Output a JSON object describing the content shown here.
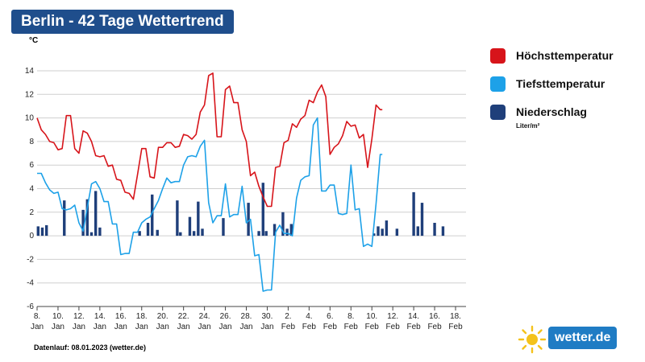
{
  "header": {
    "title": "Berlin - 42 Tage Wettertrend"
  },
  "footer": {
    "text": "Datenlauf: 08.01.2023 (wetter.de)"
  },
  "logo": {
    "text": "wetter.de",
    "sun_color": "#f4c21b",
    "badge_color": "#1f7cc4"
  },
  "chart_data": {
    "type": "line",
    "unit_label": "°C",
    "ylim": [
      -6,
      14
    ],
    "yticks": [
      -6,
      -4,
      -2,
      0,
      2,
      4,
      6,
      8,
      10,
      12,
      14
    ],
    "xlim": [
      0,
      41
    ],
    "grid": true,
    "legend_position": "right",
    "x_ticks": [
      {
        "day": 0,
        "top": "8.",
        "bottom": "Jan"
      },
      {
        "day": 2,
        "top": "10.",
        "bottom": "Jan"
      },
      {
        "day": 4,
        "top": "12.",
        "bottom": "Jan"
      },
      {
        "day": 6,
        "top": "14.",
        "bottom": "Jan"
      },
      {
        "day": 8,
        "top": "16.",
        "bottom": "Jan"
      },
      {
        "day": 10,
        "top": "18.",
        "bottom": "Jan"
      },
      {
        "day": 12,
        "top": "20.",
        "bottom": "Jan"
      },
      {
        "day": 14,
        "top": "22.",
        "bottom": "Jan"
      },
      {
        "day": 16,
        "top": "24.",
        "bottom": "Jan"
      },
      {
        "day": 18,
        "top": "26.",
        "bottom": "Jan"
      },
      {
        "day": 20,
        "top": "28.",
        "bottom": "Jan"
      },
      {
        "day": 22,
        "top": "30.",
        "bottom": "Jan"
      },
      {
        "day": 24,
        "top": "2.",
        "bottom": "Feb"
      },
      {
        "day": 26,
        "top": "4.",
        "bottom": "Feb"
      },
      {
        "day": 28,
        "top": "6.",
        "bottom": "Feb"
      },
      {
        "day": 30,
        "top": "8.",
        "bottom": "Feb"
      },
      {
        "day": 32,
        "top": "10.",
        "bottom": "Feb"
      },
      {
        "day": 34,
        "top": "12.",
        "bottom": "Feb"
      },
      {
        "day": 36,
        "top": "14.",
        "bottom": "Feb"
      },
      {
        "day": 38,
        "top": "16.",
        "bottom": "Feb"
      },
      {
        "day": 40,
        "top": "18.",
        "bottom": "Feb"
      }
    ],
    "series": [
      {
        "name": "Höchsttemperatur",
        "color": "#d7141a",
        "type": "line",
        "points": [
          [
            0,
            10
          ],
          [
            0.4,
            9
          ],
          [
            0.8,
            8.6
          ],
          [
            1.2,
            8
          ],
          [
            1.6,
            7.9
          ],
          [
            2,
            7.3
          ],
          [
            2.4,
            7.4
          ],
          [
            2.8,
            10.2
          ],
          [
            3.2,
            10.2
          ],
          [
            3.6,
            7.4
          ],
          [
            4,
            7
          ],
          [
            4.4,
            8.9
          ],
          [
            4.8,
            8.7
          ],
          [
            5.2,
            8
          ],
          [
            5.6,
            6.8
          ],
          [
            6,
            6.7
          ],
          [
            6.4,
            6.8
          ],
          [
            6.8,
            5.9
          ],
          [
            7.2,
            6
          ],
          [
            7.6,
            4.8
          ],
          [
            8,
            4.7
          ],
          [
            8.4,
            3.7
          ],
          [
            8.8,
            3.6
          ],
          [
            9.2,
            3.1
          ],
          [
            9.6,
            5.2
          ],
          [
            10,
            7.4
          ],
          [
            10.4,
            7.4
          ],
          [
            10.8,
            5
          ],
          [
            11.2,
            4.9
          ],
          [
            11.6,
            7.5
          ],
          [
            12,
            7.5
          ],
          [
            12.4,
            7.9
          ],
          [
            12.8,
            7.9
          ],
          [
            13.2,
            7.5
          ],
          [
            13.6,
            7.6
          ],
          [
            14,
            8.6
          ],
          [
            14.4,
            8.5
          ],
          [
            14.8,
            8.2
          ],
          [
            15.2,
            8.6
          ],
          [
            15.6,
            10.5
          ],
          [
            16,
            11.1
          ],
          [
            16.4,
            13.6
          ],
          [
            16.8,
            13.8
          ],
          [
            17.2,
            8.4
          ],
          [
            17.6,
            8.4
          ],
          [
            18,
            12.4
          ],
          [
            18.4,
            12.7
          ],
          [
            18.8,
            11.3
          ],
          [
            19.2,
            11.3
          ],
          [
            19.6,
            9
          ],
          [
            20,
            8
          ],
          [
            20.4,
            5.1
          ],
          [
            20.8,
            5.4
          ],
          [
            21.2,
            4.2
          ],
          [
            21.6,
            3.3
          ],
          [
            22,
            2.5
          ],
          [
            22.4,
            2.5
          ],
          [
            22.8,
            5.8
          ],
          [
            23.2,
            5.9
          ],
          [
            23.6,
            7.9
          ],
          [
            24,
            8.1
          ],
          [
            24.4,
            9.5
          ],
          [
            24.8,
            9.2
          ],
          [
            25.2,
            9.9
          ],
          [
            25.6,
            10.2
          ],
          [
            26,
            11.5
          ],
          [
            26.4,
            11.3
          ],
          [
            26.8,
            12.2
          ],
          [
            27.2,
            12.8
          ],
          [
            27.6,
            11.8
          ],
          [
            28,
            6.9
          ],
          [
            28.4,
            7.5
          ],
          [
            28.8,
            7.8
          ],
          [
            29.2,
            8.5
          ],
          [
            29.6,
            9.7
          ],
          [
            30,
            9.3
          ],
          [
            30.4,
            9.4
          ],
          [
            30.8,
            8.3
          ],
          [
            31.2,
            8.6
          ],
          [
            31.6,
            5.8
          ],
          [
            32,
            8.2
          ],
          [
            32.4,
            11.1
          ],
          [
            32.8,
            10.7
          ],
          [
            33,
            10.7
          ]
        ]
      },
      {
        "name": "Tiefsttemperatur",
        "color": "#1da1e8",
        "type": "line",
        "points": [
          [
            0,
            5.3
          ],
          [
            0.4,
            5.3
          ],
          [
            0.8,
            4.5
          ],
          [
            1.2,
            3.9
          ],
          [
            1.6,
            3.6
          ],
          [
            2,
            3.7
          ],
          [
            2.4,
            2.3
          ],
          [
            2.8,
            2.2
          ],
          [
            3.2,
            2.3
          ],
          [
            3.6,
            2.6
          ],
          [
            4,
            1.1
          ],
          [
            4.4,
            0.4
          ],
          [
            4.8,
            2.4
          ],
          [
            5.2,
            4.4
          ],
          [
            5.6,
            4.6
          ],
          [
            6,
            4
          ],
          [
            6.4,
            2.9
          ],
          [
            6.8,
            2.9
          ],
          [
            7.2,
            1
          ],
          [
            7.6,
            1
          ],
          [
            8,
            -1.6
          ],
          [
            8.4,
            -1.5
          ],
          [
            8.8,
            -1.5
          ],
          [
            9.2,
            0.3
          ],
          [
            9.6,
            0.3
          ],
          [
            10,
            1.1
          ],
          [
            10.4,
            1.4
          ],
          [
            10.8,
            1.6
          ],
          [
            11.2,
            2.3
          ],
          [
            11.6,
            3
          ],
          [
            12,
            4
          ],
          [
            12.4,
            4.9
          ],
          [
            12.8,
            4.5
          ],
          [
            13.2,
            4.6
          ],
          [
            13.6,
            4.6
          ],
          [
            14,
            6
          ],
          [
            14.4,
            6.7
          ],
          [
            14.8,
            6.8
          ],
          [
            15.2,
            6.7
          ],
          [
            15.6,
            7.6
          ],
          [
            16,
            8.1
          ],
          [
            16.4,
            2.8
          ],
          [
            16.8,
            1.1
          ],
          [
            17.2,
            1.7
          ],
          [
            17.6,
            1.7
          ],
          [
            18,
            4.4
          ],
          [
            18.4,
            1.6
          ],
          [
            18.8,
            1.8
          ],
          [
            19.2,
            1.8
          ],
          [
            19.6,
            4.2
          ],
          [
            20,
            1.1
          ],
          [
            20.4,
            1.4
          ],
          [
            20.8,
            -1.7
          ],
          [
            21.2,
            -1.6
          ],
          [
            21.6,
            -4.7
          ],
          [
            22,
            -4.6
          ],
          [
            22.4,
            -4.6
          ],
          [
            22.8,
            0.3
          ],
          [
            23.2,
            0.9
          ],
          [
            23.6,
            0.2
          ],
          [
            24,
            0.2
          ],
          [
            24.4,
            0
          ],
          [
            24.8,
            3.2
          ],
          [
            25.2,
            4.7
          ],
          [
            25.6,
            5
          ],
          [
            26,
            5.1
          ],
          [
            26.4,
            9.4
          ],
          [
            26.8,
            10
          ],
          [
            27.2,
            3.8
          ],
          [
            27.6,
            3.8
          ],
          [
            28,
            4.3
          ],
          [
            28.4,
            4.3
          ],
          [
            28.8,
            1.9
          ],
          [
            29.2,
            1.8
          ],
          [
            29.6,
            1.9
          ],
          [
            30,
            6
          ],
          [
            30.4,
            2.2
          ],
          [
            30.8,
            2.3
          ],
          [
            31.2,
            -0.9
          ],
          [
            31.6,
            -0.7
          ],
          [
            32,
            -0.9
          ],
          [
            32.4,
            2.7
          ],
          [
            32.8,
            6.9
          ],
          [
            33,
            6.9
          ]
        ]
      },
      {
        "name": "Niederschlag",
        "color": "#1f3f7a",
        "type": "bar",
        "legend_sub": "Liter/m²",
        "points": [
          [
            0.1,
            0.8
          ],
          [
            0.5,
            0.7
          ],
          [
            0.9,
            0.9
          ],
          [
            2.6,
            3
          ],
          [
            4.4,
            2.2
          ],
          [
            4.8,
            3.1
          ],
          [
            5.2,
            0.3
          ],
          [
            5.6,
            3.8
          ],
          [
            6,
            0.7
          ],
          [
            9.8,
            0.4
          ],
          [
            10.6,
            1.1
          ],
          [
            11,
            3.5
          ],
          [
            11.5,
            0.5
          ],
          [
            13.4,
            3
          ],
          [
            13.7,
            0.3
          ],
          [
            14.6,
            1.6
          ],
          [
            15,
            0.4
          ],
          [
            15.4,
            2.9
          ],
          [
            15.8,
            0.6
          ],
          [
            17.8,
            1.5
          ],
          [
            20.2,
            2.8
          ],
          [
            21.2,
            0.4
          ],
          [
            21.6,
            4.5
          ],
          [
            21.9,
            0.4
          ],
          [
            22.7,
            1
          ],
          [
            23.5,
            2
          ],
          [
            23.9,
            0.6
          ],
          [
            24.3,
            1
          ],
          [
            32.2,
            0.2
          ],
          [
            32.6,
            0.8
          ],
          [
            33,
            0.6
          ],
          [
            33.4,
            1.3
          ],
          [
            34.4,
            0.6
          ],
          [
            36,
            3.7
          ],
          [
            36.4,
            0.8
          ],
          [
            36.8,
            2.8
          ],
          [
            38,
            1.1
          ],
          [
            38.8,
            0.8
          ]
        ]
      }
    ]
  }
}
